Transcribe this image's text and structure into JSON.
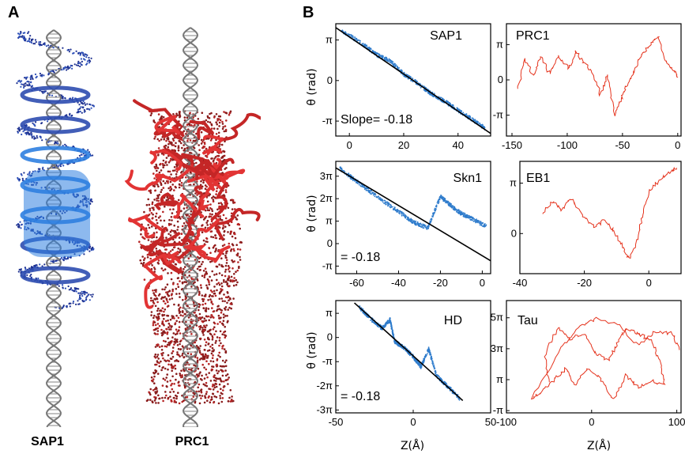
{
  "panel_a": {
    "letter": "A",
    "left_label": "SAP1",
    "right_label": "PRC1",
    "colors": {
      "dna": "#9a9a9a",
      "sap1_dark": "#1c2f8f",
      "sap1_light": "#2f7fe0",
      "prc1_dark": "#8a1c1c",
      "prc1_light": "#e23434"
    }
  },
  "panel_b": {
    "letter": "B",
    "y_axis_label": "θ (rad)",
    "x_axis_label": "Z(Å)"
  },
  "chart_data": [
    {
      "type": "scatter",
      "name": "SAP1",
      "color": "#2f7ccc",
      "xlim": [
        -5,
        52
      ],
      "ylim": [
        -4.3,
        4.4
      ],
      "xticks": [
        "0",
        "20",
        "40"
      ],
      "xtick_values": [
        0,
        20,
        40
      ],
      "yticks": [
        "π",
        "0",
        "-π"
      ],
      "ytick_values": [
        3.14159,
        0,
        -3.14159
      ],
      "fit_line": {
        "slope": -0.18,
        "x": [
          -5,
          52
        ],
        "y": [
          4.1,
          -4.1
        ]
      },
      "annotation": "Slope= -0.18",
      "path": [
        [
          -3,
          3.9
        ],
        [
          5,
          2.8
        ],
        [
          10,
          2.0
        ],
        [
          15,
          1.5
        ],
        [
          20,
          0.5
        ],
        [
          25,
          -0.2
        ],
        [
          30,
          -1.0
        ],
        [
          35,
          -1.6
        ],
        [
          40,
          -2.3
        ],
        [
          45,
          -3.0
        ],
        [
          50,
          -3.7
        ]
      ]
    },
    {
      "type": "line",
      "name": "PRC1",
      "color": "#e5341e",
      "xlim": [
        -155,
        3
      ],
      "ylim": [
        -5,
        5
      ],
      "xticks": [
        "-150",
        "-100",
        "-50",
        "0"
      ],
      "xtick_values": [
        -150,
        -100,
        -50,
        0
      ],
      "yticks": [
        "π",
        "0",
        "-π"
      ],
      "ytick_values": [
        3.14159,
        0,
        -3.14159
      ],
      "path": [
        [
          -145,
          -0.8
        ],
        [
          -138,
          1.8
        ],
        [
          -130,
          0.3
        ],
        [
          -124,
          2.2
        ],
        [
          -116,
          0.5
        ],
        [
          -108,
          2.1
        ],
        [
          -98,
          1.0
        ],
        [
          -92,
          2.5
        ],
        [
          -85,
          1.6
        ],
        [
          -78,
          0.8
        ],
        [
          -70,
          -1.3
        ],
        [
          -64,
          0.5
        ],
        [
          -57,
          -3.1
        ],
        [
          -52,
          -1.8
        ],
        [
          -46,
          -0.5
        ],
        [
          -40,
          0.6
        ],
        [
          -33,
          2.2
        ],
        [
          -26,
          3.0
        ],
        [
          -18,
          3.9
        ],
        [
          -11,
          1.8
        ],
        [
          -5,
          0.9
        ],
        [
          1,
          0.3
        ]
      ]
    },
    {
      "type": "scatter",
      "name": "Skn1",
      "color": "#2f7ccc",
      "xlim": [
        -70,
        4
      ],
      "ylim": [
        -4.2,
        11.5
      ],
      "xticks": [
        "-60",
        "-40",
        "-20",
        "0"
      ],
      "xtick_values": [
        -60,
        -40,
        -20,
        0
      ],
      "yticks": [
        "3π",
        "2π",
        "π",
        "0",
        "-π"
      ],
      "ytick_values": [
        9.42478,
        6.28319,
        3.14159,
        0,
        -3.14159
      ],
      "fit_line": {
        "slope": -0.18,
        "x": [
          -70,
          4
        ],
        "y": [
          10.6,
          -2.4
        ]
      },
      "annotation": "= -0.18",
      "path": [
        [
          -68,
          10.5
        ],
        [
          -60,
          8.7
        ],
        [
          -50,
          6.5
        ],
        [
          -40,
          4.5
        ],
        [
          -33,
          3.0
        ],
        [
          -26,
          2.2
        ],
        [
          -20,
          6.6
        ],
        [
          -15,
          5.3
        ],
        [
          -10,
          4.2
        ],
        [
          -5,
          3.5
        ],
        [
          2,
          2.4
        ]
      ]
    },
    {
      "type": "line",
      "name": "EB1",
      "color": "#e5341e",
      "xlim": [
        -40,
        10
      ],
      "ylim": [
        -2.5,
        4.5
      ],
      "xticks": [
        "-40",
        "-20",
        "0"
      ],
      "xtick_values": [
        -40,
        -20,
        0
      ],
      "yticks": [
        "π",
        "0"
      ],
      "ytick_values": [
        3.14159,
        0
      ],
      "path": [
        [
          -33,
          1.2
        ],
        [
          -30,
          2.0
        ],
        [
          -27,
          1.5
        ],
        [
          -24,
          2.2
        ],
        [
          -20,
          1.0
        ],
        [
          -17,
          0.4
        ],
        [
          -14,
          0.8
        ],
        [
          -11,
          0.2
        ],
        [
          -8,
          -0.9
        ],
        [
          -6,
          -1.6
        ],
        [
          -4,
          -0.6
        ],
        [
          -2,
          1.0
        ],
        [
          0,
          2.6
        ],
        [
          3,
          3.3
        ],
        [
          7,
          3.9
        ],
        [
          9,
          4.1
        ]
      ]
    },
    {
      "type": "scatter",
      "name": "HD",
      "color": "#2f7ccc",
      "xlim": [
        -50,
        50
      ],
      "ylim": [
        -9.8,
        4.8
      ],
      "xticks": [
        "-50",
        "0",
        "50"
      ],
      "xtick_values": [
        -50,
        0,
        50
      ],
      "yticks": [
        "π",
        "0",
        "-π",
        "-2π",
        "-3π"
      ],
      "ytick_values": [
        3.14159,
        0,
        -3.14159,
        -6.28319,
        -9.42478
      ],
      "fit_line": {
        "slope": -0.18,
        "x": [
          -38,
          32
        ],
        "y": [
          4.5,
          -8.2
        ]
      },
      "annotation": "= -0.18",
      "path": [
        [
          -35,
          4.0
        ],
        [
          -28,
          2.5
        ],
        [
          -20,
          1.2
        ],
        [
          -15,
          2.3
        ],
        [
          -12,
          -0.5
        ],
        [
          -5,
          -1.5
        ],
        [
          0,
          -2.5
        ],
        [
          5,
          -3.8
        ],
        [
          10,
          -1.5
        ],
        [
          15,
          -5.0
        ],
        [
          22,
          -6.3
        ],
        [
          30,
          -7.9
        ]
      ]
    },
    {
      "type": "line",
      "name": "Tau",
      "color": "#e5341e",
      "xlim": [
        -100,
        105
      ],
      "ylim": [
        -3.6,
        19.2
      ],
      "xticks": [
        "-100",
        "0",
        "100"
      ],
      "xtick_values": [
        -100,
        0,
        100
      ],
      "yticks": [
        "5π",
        "3π",
        "π",
        "-π"
      ],
      "ytick_values": [
        15.708,
        9.42478,
        3.14159,
        -3.14159
      ],
      "path": [
        [
          -50,
          2.5
        ],
        [
          -55,
          8.0
        ],
        [
          -40,
          13.8
        ],
        [
          -25,
          11.5
        ],
        [
          -10,
          12.5
        ],
        [
          5,
          8.5
        ],
        [
          20,
          7.0
        ],
        [
          30,
          10.5
        ],
        [
          40,
          13.5
        ],
        [
          55,
          12.5
        ],
        [
          70,
          11.0
        ],
        [
          80,
          7.0
        ],
        [
          85,
          2.0
        ],
        [
          70,
          3.0
        ],
        [
          55,
          1.5
        ],
        [
          40,
          4.0
        ],
        [
          25,
          -1.0
        ],
        [
          10,
          3.5
        ],
        [
          -5,
          5.5
        ],
        [
          -20,
          2.0
        ],
        [
          -30,
          5.5
        ],
        [
          -45,
          3.0
        ],
        [
          -60,
          0.5
        ],
        [
          -70,
          -0.5
        ],
        [
          -35,
          9.5
        ],
        [
          -15,
          14.0
        ],
        [
          5,
          15.5
        ],
        [
          30,
          14.5
        ],
        [
          55,
          10.0
        ],
        [
          75,
          13.0
        ],
        [
          95,
          12.5
        ],
        [
          105,
          9.0
        ]
      ]
    }
  ]
}
